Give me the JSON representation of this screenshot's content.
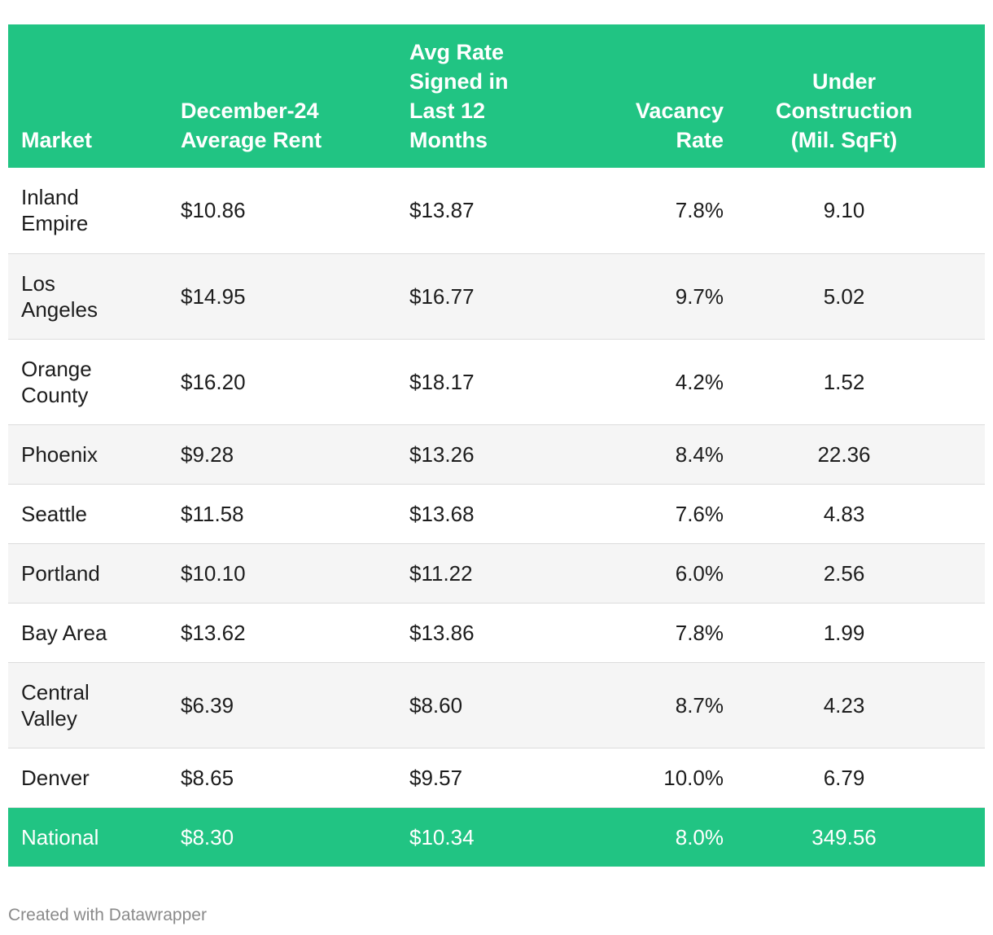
{
  "chart_data": {
    "type": "table",
    "columns": [
      "Market",
      "December-24 Average Rent",
      "Avg Rate Signed in Last 12 Months",
      "Vacancy Rate",
      "Under Construction (Mil. SqFt)"
    ],
    "header_lines": [
      [
        "Market"
      ],
      [
        "December-24",
        "Average Rent"
      ],
      [
        "Avg Rate",
        "Signed in",
        "Last 12",
        "Months"
      ],
      [
        "Vacancy",
        "Rate"
      ],
      [
        "Under",
        "Construction",
        "(Mil. SqFt)"
      ]
    ],
    "rows": [
      {
        "market_lines": [
          "Inland",
          "Empire"
        ],
        "rent": "$10.86",
        "signed": "$13.87",
        "vacancy": "7.8%",
        "construction": "9.10"
      },
      {
        "market_lines": [
          "Los",
          "Angeles"
        ],
        "rent": "$14.95",
        "signed": "$16.77",
        "vacancy": "9.7%",
        "construction": "5.02"
      },
      {
        "market_lines": [
          "Orange",
          "County"
        ],
        "rent": "$16.20",
        "signed": "$18.17",
        "vacancy": "4.2%",
        "construction": "1.52"
      },
      {
        "market_lines": [
          "Phoenix"
        ],
        "rent": "$9.28",
        "signed": "$13.26",
        "vacancy": "8.4%",
        "construction": "22.36"
      },
      {
        "market_lines": [
          "Seattle"
        ],
        "rent": "$11.58",
        "signed": "$13.68",
        "vacancy": "7.6%",
        "construction": "4.83"
      },
      {
        "market_lines": [
          "Portland"
        ],
        "rent": "$10.10",
        "signed": "$11.22",
        "vacancy": "6.0%",
        "construction": "2.56"
      },
      {
        "market_lines": [
          "Bay Area"
        ],
        "rent": "$13.62",
        "signed": "$13.86",
        "vacancy": "7.8%",
        "construction": "1.99"
      },
      {
        "market_lines": [
          "Central",
          "Valley"
        ],
        "rent": "$6.39",
        "signed": "$8.60",
        "vacancy": "8.7%",
        "construction": "4.23"
      },
      {
        "market_lines": [
          "Denver"
        ],
        "rent": "$8.65",
        "signed": "$9.57",
        "vacancy": "10.0%",
        "construction": "6.79"
      }
    ],
    "national": {
      "market": "National",
      "rent": "$8.30",
      "signed": "$10.34",
      "vacancy": "8.0%",
      "construction": "349.56"
    }
  },
  "colors": {
    "header_bg": "#21c483",
    "header_text": "#ffffff",
    "stripe_bg": "#f5f5f5",
    "footer_text": "#8a8a8a"
  },
  "footer": "Created with Datawrapper"
}
